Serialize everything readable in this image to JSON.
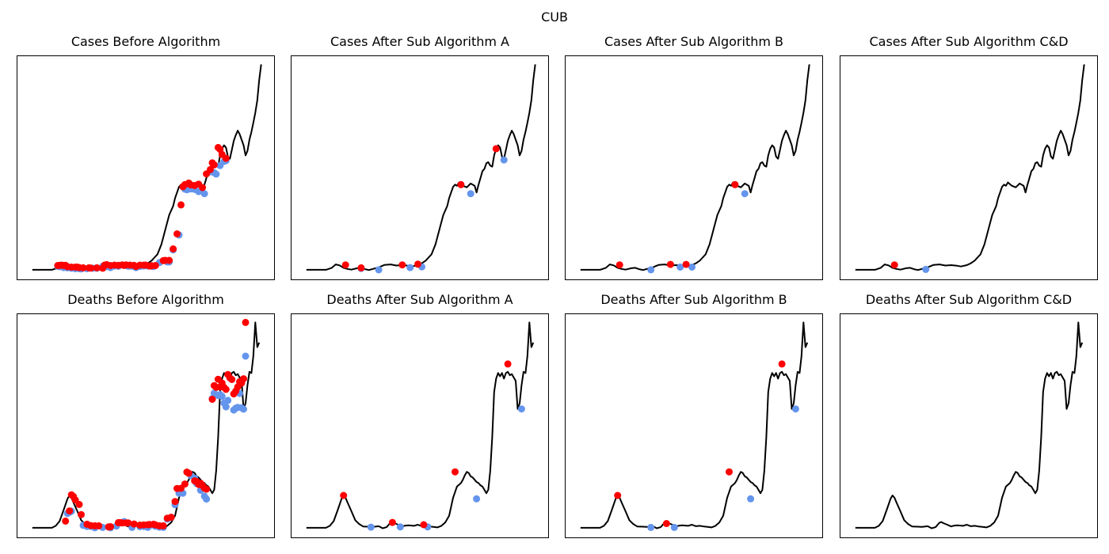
{
  "suptitle": "CUB",
  "colors": {
    "line": "#000000",
    "peak": "#ff0000",
    "trough": "#6495ed",
    "frame": "#000000"
  },
  "chart_data": [
    {
      "type": "line",
      "title": "Cases Before Algorithm",
      "grid": false,
      "xlim": [
        0,
        100
      ],
      "ylim": [
        0,
        100
      ]
    },
    {
      "type": "line",
      "title": "Cases After Sub Algorithm A",
      "grid": false,
      "xlim": [
        0,
        100
      ],
      "ylim": [
        0,
        100
      ]
    },
    {
      "type": "line",
      "title": "Cases After Sub Algorithm B",
      "grid": false,
      "xlim": [
        0,
        100
      ],
      "ylim": [
        0,
        100
      ]
    },
    {
      "type": "line",
      "title": "Cases After Sub Algorithm C&D",
      "grid": false,
      "xlim": [
        0,
        100
      ],
      "ylim": [
        0,
        100
      ]
    },
    {
      "type": "line",
      "title": "Deaths Before Algorithm",
      "grid": false,
      "xlim": [
        0,
        100
      ],
      "ylim": [
        0,
        100
      ]
    },
    {
      "type": "line",
      "title": "Deaths After Sub Algorithm A",
      "grid": false,
      "xlim": [
        0,
        100
      ],
      "ylim": [
        0,
        100
      ]
    },
    {
      "type": "line",
      "title": "Deaths After Sub Algorithm B",
      "grid": false,
      "xlim": [
        0,
        100
      ],
      "ylim": [
        0,
        100
      ]
    },
    {
      "type": "line",
      "title": "Deaths After Sub Algorithm C&D",
      "grid": false,
      "xlim": [
        0,
        100
      ],
      "ylim": [
        0,
        100
      ]
    }
  ],
  "series": {
    "cases": [
      [
        0,
        4.6
      ],
      [
        4,
        4.6
      ],
      [
        10,
        4.6
      ],
      [
        13,
        5.5
      ],
      [
        15,
        7.0
      ],
      [
        17,
        6.6
      ],
      [
        19,
        5.5
      ],
      [
        21,
        5.0
      ],
      [
        23,
        4.7
      ],
      [
        26,
        5.3
      ],
      [
        28,
        5.5
      ],
      [
        30,
        4.9
      ],
      [
        32,
        4.5
      ],
      [
        34,
        5.0
      ],
      [
        37,
        5.7
      ],
      [
        40,
        6.8
      ],
      [
        43,
        7.0
      ],
      [
        46,
        6.5
      ],
      [
        49,
        6.7
      ],
      [
        52,
        6.4
      ],
      [
        54,
        6.1
      ],
      [
        57,
        6.7
      ],
      [
        59,
        7.5
      ],
      [
        61,
        8.7
      ],
      [
        64,
        11.5
      ],
      [
        66,
        16.0
      ],
      [
        68,
        22.5
      ],
      [
        70,
        29.0
      ],
      [
        72,
        33.0
      ],
      [
        73,
        36.5
      ],
      [
        74,
        39.0
      ],
      [
        75,
        41.5
      ],
      [
        76,
        42.5
      ],
      [
        77,
        42.0
      ],
      [
        78,
        43.5
      ],
      [
        80,
        42.0
      ],
      [
        82,
        41.3
      ],
      [
        84,
        43.0
      ],
      [
        86,
        42.0
      ],
      [
        87,
        39.0
      ],
      [
        88,
        42.5
      ],
      [
        89,
        45.5
      ],
      [
        90,
        48.5
      ],
      [
        91,
        49.5
      ],
      [
        92,
        52.0
      ],
      [
        93,
        52.5
      ],
      [
        94,
        51.0
      ],
      [
        95,
        50.5
      ],
      [
        96,
        55.5
      ],
      [
        97,
        58.5
      ],
      [
        98,
        60.0
      ],
      [
        99,
        59.0
      ],
      [
        100,
        55.0
      ],
      [
        101,
        54.0
      ],
      [
        102,
        58.0
      ],
      [
        103,
        62.0
      ],
      [
        104,
        64.5
      ],
      [
        105,
        66.5
      ],
      [
        106,
        65.0
      ],
      [
        107,
        62.5
      ],
      [
        108,
        60.0
      ],
      [
        109,
        55.5
      ],
      [
        110,
        57.5
      ],
      [
        111,
        62.5
      ],
      [
        112,
        66.0
      ],
      [
        113,
        70.0
      ],
      [
        114,
        74.5
      ],
      [
        115,
        80.0
      ],
      [
        116,
        89.0
      ],
      [
        117,
        96.0
      ]
    ],
    "deaths": [
      [
        0,
        4.6
      ],
      [
        5,
        4.6
      ],
      [
        10,
        4.6
      ],
      [
        12,
        5.5
      ],
      [
        14,
        7.6
      ],
      [
        16,
        12.5
      ],
      [
        18,
        17.5
      ],
      [
        19,
        19.0
      ],
      [
        20,
        18.0
      ],
      [
        21,
        16.0
      ],
      [
        23,
        12.0
      ],
      [
        25,
        8.0
      ],
      [
        27,
        6.3
      ],
      [
        29,
        5.2
      ],
      [
        32,
        5.1
      ],
      [
        34,
        5.0
      ],
      [
        37,
        5.3
      ],
      [
        39,
        4.4
      ],
      [
        41,
        4.9
      ],
      [
        43,
        6.9
      ],
      [
        44,
        7.2
      ],
      [
        45,
        6.7
      ],
      [
        47,
        6.0
      ],
      [
        49,
        5.2
      ],
      [
        50,
        5.5
      ],
      [
        52,
        5.7
      ],
      [
        55,
        5.5
      ],
      [
        57,
        6.0
      ],
      [
        59,
        5.3
      ],
      [
        61,
        5.5
      ],
      [
        63,
        5.2
      ],
      [
        65,
        5.0
      ],
      [
        67,
        4.8
      ],
      [
        69,
        5.5
      ],
      [
        71,
        7.0
      ],
      [
        73,
        10.0
      ],
      [
        75,
        18.0
      ],
      [
        77,
        23.0
      ],
      [
        79,
        24.5
      ],
      [
        80,
        26.0
      ],
      [
        81,
        28.0
      ],
      [
        82,
        29.5
      ],
      [
        83,
        29.0
      ],
      [
        84,
        27.5
      ],
      [
        85,
        27.0
      ],
      [
        86,
        26.0
      ],
      [
        87,
        25.0
      ],
      [
        88,
        24.5
      ],
      [
        89,
        23.5
      ],
      [
        90,
        23.0
      ],
      [
        91,
        21.5
      ],
      [
        92,
        20.0
      ],
      [
        93,
        21.5
      ],
      [
        94,
        30.0
      ],
      [
        95,
        45.0
      ],
      [
        96,
        65.0
      ],
      [
        97,
        71.0
      ],
      [
        98,
        73.5
      ],
      [
        99,
        72.0
      ],
      [
        100,
        73.5
      ],
      [
        101,
        71.0
      ],
      [
        102,
        73.5
      ],
      [
        103,
        74.0
      ],
      [
        104,
        72.5
      ],
      [
        105,
        73.0
      ],
      [
        106,
        71.5
      ],
      [
        107,
        70.0
      ],
      [
        108,
        57.5
      ],
      [
        109,
        60.0
      ],
      [
        110,
        68.0
      ],
      [
        111,
        74.0
      ],
      [
        112,
        73.5
      ],
      [
        113,
        81.0
      ],
      [
        114,
        96.0
      ],
      [
        115,
        85.0
      ],
      [
        116,
        87.0
      ]
    ]
  },
  "markers": {
    "cases_before_peaks": [
      [
        13,
        6.5
      ],
      [
        14,
        6.6
      ],
      [
        15,
        6.7
      ],
      [
        16,
        6.5
      ],
      [
        17,
        6.6
      ],
      [
        18,
        6.0
      ],
      [
        20,
        5.8
      ],
      [
        22,
        5.8
      ],
      [
        23,
        5.8
      ],
      [
        24,
        5.6
      ],
      [
        26,
        5.5
      ],
      [
        29,
        5.5
      ],
      [
        30,
        5.4
      ],
      [
        33,
        5.5
      ],
      [
        36,
        5.3
      ],
      [
        37,
        6.7
      ],
      [
        38,
        6.9
      ],
      [
        40,
        6.5
      ],
      [
        42,
        6.7
      ],
      [
        44,
        6.6
      ],
      [
        46,
        6.8
      ],
      [
        47,
        6.6
      ],
      [
        48,
        6.8
      ],
      [
        50,
        6.7
      ],
      [
        52,
        6.6
      ],
      [
        53,
        6.1
      ],
      [
        55,
        6.7
      ],
      [
        57,
        6.7
      ],
      [
        58,
        6.7
      ],
      [
        60,
        6.3
      ],
      [
        61,
        6.4
      ],
      [
        63,
        6.5
      ],
      [
        67,
        8.7
      ],
      [
        68,
        8.8
      ],
      [
        70,
        8.8
      ],
      [
        72,
        13.9
      ],
      [
        74,
        20.6
      ],
      [
        76,
        33.5
      ],
      [
        77,
        41.6
      ],
      [
        78,
        42.5
      ],
      [
        80,
        43.2
      ],
      [
        81,
        42.4
      ],
      [
        83,
        42.1
      ],
      [
        85,
        42.7
      ],
      [
        87,
        41.2
      ],
      [
        89,
        47.3
      ],
      [
        91,
        49.2
      ],
      [
        92,
        52.2
      ],
      [
        93,
        51.3
      ],
      [
        95,
        59.0
      ],
      [
        96,
        58.2
      ],
      [
        97,
        55.9
      ],
      [
        99,
        54.2
      ]
    ],
    "cases_before_troughs": [
      [
        13,
        6.2
      ],
      [
        14,
        6.0
      ],
      [
        16,
        5.6
      ],
      [
        18,
        5.5
      ],
      [
        20,
        5.3
      ],
      [
        22,
        5.1
      ],
      [
        24,
        5.1
      ],
      [
        25,
        5.0
      ],
      [
        28,
        5.1
      ],
      [
        31,
        5.3
      ],
      [
        33,
        5.3
      ],
      [
        36,
        6.2
      ],
      [
        38,
        6.0
      ],
      [
        40,
        5.6
      ],
      [
        42,
        6.3
      ],
      [
        44,
        6.2
      ],
      [
        47,
        6.5
      ],
      [
        49,
        6.2
      ],
      [
        51,
        6.2
      ],
      [
        53,
        5.6
      ],
      [
        55,
        6.1
      ],
      [
        57,
        6.3
      ],
      [
        59,
        6.3
      ],
      [
        61,
        6.2
      ],
      [
        62,
        6.1
      ],
      [
        65,
        7.8
      ],
      [
        69,
        8.1
      ],
      [
        70,
        8.1
      ],
      [
        72,
        13.5
      ],
      [
        75,
        20.1
      ],
      [
        78,
        40.5
      ],
      [
        79,
        40.2
      ],
      [
        81,
        40.6
      ],
      [
        83,
        40.4
      ],
      [
        85,
        39.4
      ],
      [
        88,
        38.5
      ],
      [
        91,
        48.2
      ],
      [
        93,
        47.8
      ],
      [
        94,
        47.2
      ],
      [
        96,
        51.0
      ],
      [
        98,
        52.8
      ],
      [
        99,
        53.2
      ]
    ],
    "cases_a_peaks": [
      [
        20,
        6.8
      ],
      [
        28,
        5.5
      ],
      [
        49,
        6.8
      ],
      [
        57,
        7.1
      ],
      [
        79,
        42.5
      ],
      [
        97,
        58.5
      ]
    ],
    "cases_a_troughs": [
      [
        28,
        5.2
      ],
      [
        37,
        4.6
      ],
      [
        53,
        5.6
      ],
      [
        59,
        5.9
      ],
      [
        84,
        38.5
      ],
      [
        101,
        53.5
      ]
    ],
    "cases_b_peaks": [
      [
        20,
        6.8
      ],
      [
        46,
        7.0
      ],
      [
        54,
        7.0
      ],
      [
        79,
        42.5
      ]
    ],
    "cases_b_troughs": [
      [
        36,
        4.6
      ],
      [
        51,
        5.8
      ],
      [
        57,
        5.8
      ],
      [
        84,
        38.5
      ]
    ],
    "cases_c_peaks": [
      [
        20,
        6.8
      ]
    ],
    "cases_c_troughs": [
      [
        36,
        4.8
      ]
    ],
    "deaths_before_peaks": [
      [
        17,
        7.6
      ],
      [
        19,
        12.1
      ],
      [
        20,
        19.3
      ],
      [
        21,
        18.6
      ],
      [
        22,
        17.0
      ],
      [
        24,
        15.0
      ],
      [
        25,
        10.5
      ],
      [
        28,
        6.2
      ],
      [
        30,
        5.6
      ],
      [
        32,
        5.5
      ],
      [
        34,
        5.5
      ],
      [
        39,
        5.0
      ],
      [
        40,
        5.1
      ],
      [
        44,
        6.9
      ],
      [
        45,
        6.9
      ],
      [
        46,
        6.8
      ],
      [
        48,
        6.8
      ],
      [
        49,
        6.8
      ],
      [
        52,
        6.3
      ],
      [
        55,
        5.8
      ],
      [
        57,
        5.9
      ],
      [
        59,
        6.0
      ],
      [
        60,
        6.1
      ],
      [
        62,
        6.2
      ],
      [
        63,
        5.9
      ],
      [
        65,
        5.5
      ],
      [
        67,
        5.5
      ],
      [
        69,
        8.9
      ],
      [
        71,
        9.3
      ],
      [
        73,
        16.3
      ],
      [
        74,
        22.1
      ],
      [
        76,
        22.2
      ],
      [
        78,
        24.1
      ],
      [
        79,
        29.4
      ],
      [
        80,
        28.9
      ],
      [
        83,
        25.5
      ],
      [
        84,
        25.2
      ],
      [
        85,
        23.9
      ],
      [
        86,
        24.4
      ],
      [
        87,
        23.4
      ],
      [
        88,
        22.3
      ],
      [
        89,
        21.8
      ],
      [
        92,
        61.8
      ],
      [
        93,
        67.9
      ],
      [
        94,
        67.1
      ],
      [
        95,
        70.7
      ],
      [
        96,
        67.3
      ],
      [
        97,
        69.0
      ],
      [
        98,
        67.1
      ],
      [
        99,
        66.2
      ],
      [
        100,
        72.8
      ],
      [
        101,
        71.3
      ],
      [
        102,
        70.6
      ],
      [
        103,
        64.2
      ],
      [
        104,
        65.4
      ],
      [
        105,
        67.3
      ],
      [
        106,
        69.6
      ],
      [
        107,
        69.0
      ],
      [
        108,
        70.9
      ],
      [
        109,
        96.0
      ]
    ],
    "deaths_before_troughs": [
      [
        18,
        11.0
      ],
      [
        19,
        11.5
      ],
      [
        20,
        12.0
      ],
      [
        26,
        5.7
      ],
      [
        28,
        5.2
      ],
      [
        30,
        5.2
      ],
      [
        32,
        4.6
      ],
      [
        36,
        4.8
      ],
      [
        40,
        4.6
      ],
      [
        43,
        5.4
      ],
      [
        47,
        7.4
      ],
      [
        51,
        4.8
      ],
      [
        55,
        5.1
      ],
      [
        57,
        5.2
      ],
      [
        59,
        4.8
      ],
      [
        61,
        5.8
      ],
      [
        63,
        5.3
      ],
      [
        65,
        4.9
      ],
      [
        67,
        4.8
      ],
      [
        69,
        8.5
      ],
      [
        71,
        9.3
      ],
      [
        73,
        14.9
      ],
      [
        75,
        20.0
      ],
      [
        76,
        20.3
      ],
      [
        77,
        20.0
      ],
      [
        81,
        27.8
      ],
      [
        83,
        26.7
      ],
      [
        84,
        24.3
      ],
      [
        86,
        21.3
      ],
      [
        88,
        18.7
      ],
      [
        89,
        17.4
      ],
      [
        92,
        62.1
      ],
      [
        93,
        64.5
      ],
      [
        95,
        63.5
      ],
      [
        96,
        63.9
      ],
      [
        97,
        63.1
      ],
      [
        98,
        60.1
      ],
      [
        99,
        58.4
      ],
      [
        100,
        61.3
      ],
      [
        103,
        57.0
      ],
      [
        104,
        57.8
      ],
      [
        105,
        58.2
      ],
      [
        106,
        64.4
      ],
      [
        107,
        58.0
      ],
      [
        108,
        57.4
      ],
      [
        109,
        81.0
      ]
    ],
    "deaths_a_peaks": [
      [
        19,
        19.0
      ],
      [
        44,
        7.0
      ],
      [
        60,
        6.0
      ],
      [
        76,
        29.5
      ],
      [
        103,
        77.5
      ]
    ],
    "deaths_a_troughs": [
      [
        33,
        4.9
      ],
      [
        48,
        5.0
      ],
      [
        62,
        5.0
      ],
      [
        87,
        17.5
      ],
      [
        110,
        57.5
      ]
    ],
    "deaths_b_peaks": [
      [
        19,
        19.0
      ],
      [
        44,
        6.5
      ],
      [
        76,
        29.5
      ],
      [
        103,
        77.5
      ]
    ],
    "deaths_b_troughs": [
      [
        36,
        4.8
      ],
      [
        48,
        4.8
      ],
      [
        87,
        17.5
      ],
      [
        110,
        57.5
      ]
    ]
  }
}
